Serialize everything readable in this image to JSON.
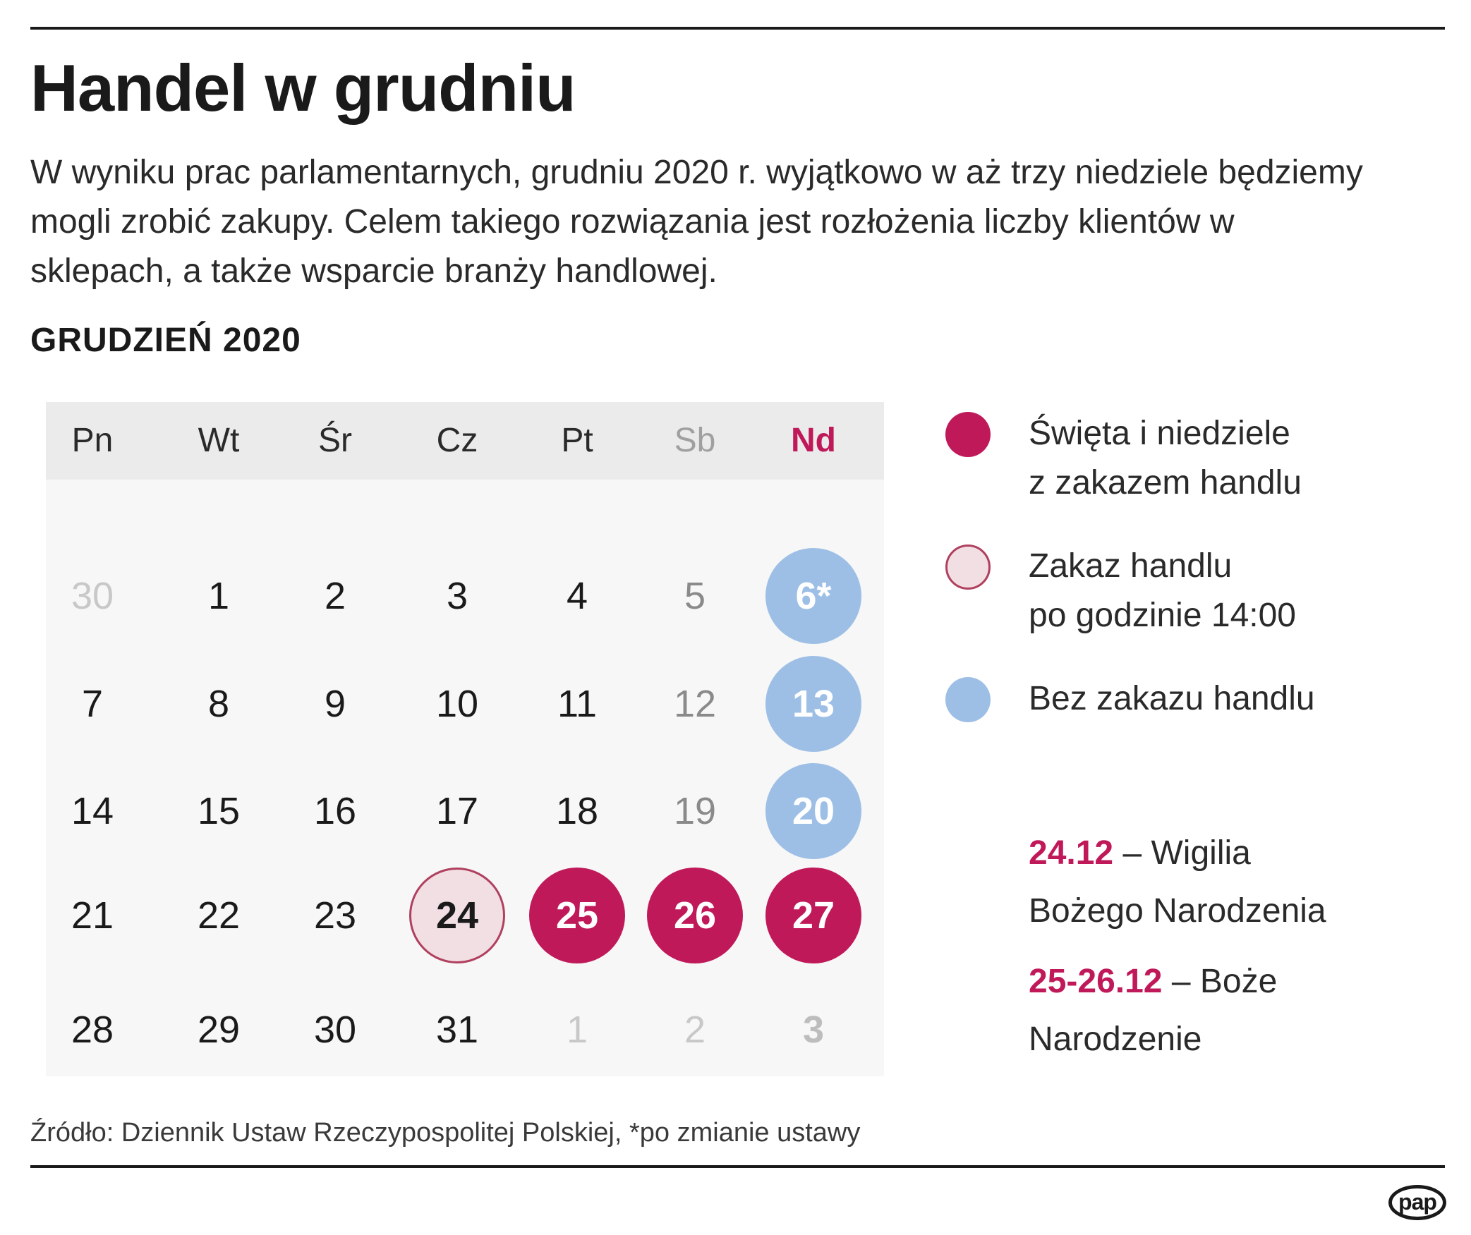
{
  "title": "Handel w grudniu",
  "lead": "W wyniku prac parlamentarnych, grudniu 2020 r. wyjątkowo w aż trzy niedziele będziemy mogli zrobić zakupy. Celem takiego rozwiązania jest rozłożenia liczby klientów w sklepach, a także wsparcie branży handlowej.",
  "month_label": "GRUDZIEŃ 2020",
  "calendar": {
    "weekdays": [
      "Pn",
      "Wt",
      "Śr",
      "Cz",
      "Pt",
      "Sb",
      "Nd"
    ],
    "weeks": [
      [
        "30",
        "1",
        "2",
        "3",
        "4",
        "5",
        "6*"
      ],
      [
        "7",
        "8",
        "9",
        "10",
        "11",
        "12",
        "13"
      ],
      [
        "14",
        "15",
        "16",
        "17",
        "18",
        "19",
        "20"
      ],
      [
        "21",
        "22",
        "23",
        "24",
        "25",
        "26",
        "27"
      ],
      [
        "28",
        "29",
        "30",
        "31",
        "1",
        "2",
        "3"
      ]
    ]
  },
  "legend": {
    "red_line1": "Święta i niedziele",
    "red_line2": "z zakazem handlu",
    "pink_line1": "Zakaz handlu",
    "pink_line2": "po godzinie 14:00",
    "blue_line1": "Bez zakazu handlu"
  },
  "notes": {
    "n1_date": "24.12",
    "n1_rest": " – Wigilia",
    "n1_line2": "Bożego Narodzenia",
    "n2_date": "25-26.12",
    "n2_rest": " – Boże",
    "n2_line2": "Narodzenie"
  },
  "source": "Źródło: Dziennik Ustaw Rzeczypospolitej Polskiej, *po zmianie ustawy",
  "logo": "pap",
  "colors": {
    "red": "#c0195a",
    "pink": "#f2dfe3",
    "blue": "#9dbfe6"
  }
}
